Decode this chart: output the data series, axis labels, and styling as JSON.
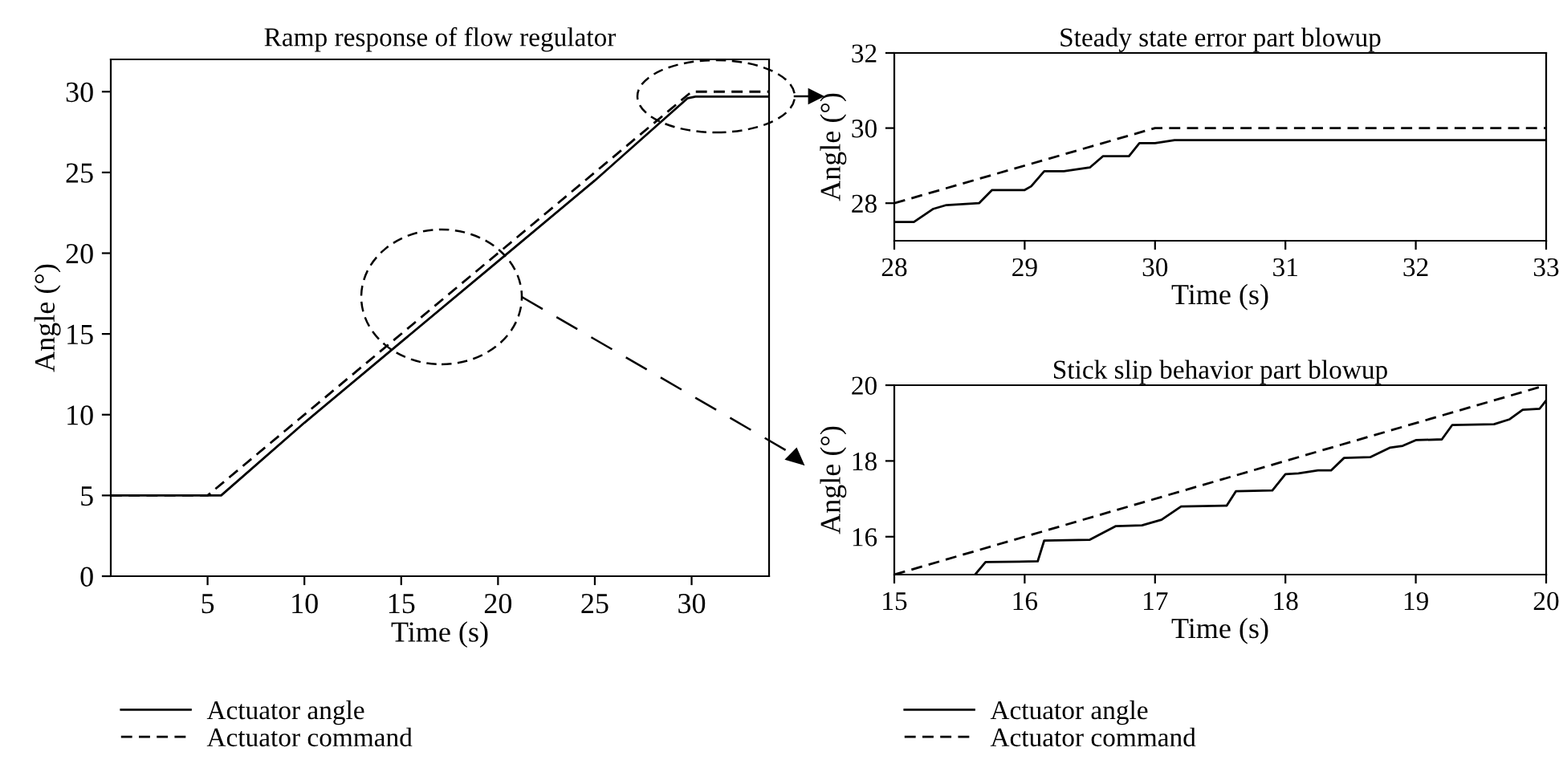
{
  "chart_data": [
    {
      "type": "line",
      "title": "Ramp response of flow regulator",
      "xlabel": "Time (s)",
      "ylabel": "Angle (°)",
      "xlim": [
        0,
        34
      ],
      "ylim": [
        0,
        32
      ],
      "xticks": [
        5,
        10,
        15,
        20,
        25,
        30
      ],
      "yticks": [
        0,
        5,
        10,
        15,
        20,
        25,
        30
      ],
      "grid": false,
      "legend": "bottom",
      "marker": "none",
      "series": [
        {
          "name": "Actuator angle",
          "color": "#000000",
          "line_style": "solid",
          "x": [
            0,
            5.7,
            10,
            15,
            20,
            25,
            29.8,
            30.2,
            34
          ],
          "values": [
            5,
            5,
            9.5,
            14.5,
            19.5,
            24.5,
            29.6,
            29.7,
            29.7
          ]
        },
        {
          "name": "Actuator command",
          "color": "#000000",
          "line_style": "dashed",
          "x": [
            0,
            5,
            30,
            34
          ],
          "values": [
            5,
            5,
            30,
            30
          ]
        }
      ]
    },
    {
      "type": "line",
      "title": "Steady state error part blowup",
      "xlabel": "Time (s)",
      "ylabel": "Angle (°)",
      "xlim": [
        28,
        33
      ],
      "ylim": [
        27,
        32
      ],
      "xticks": [
        28,
        29,
        30,
        31,
        32,
        33
      ],
      "yticks": [
        28,
        30,
        32
      ],
      "grid": false,
      "marker": "none",
      "series": [
        {
          "color": "#000000",
          "line_style": "solid",
          "x": [
            28,
            28.15,
            28.3,
            28.4,
            28.65,
            28.75,
            29.0,
            29.05,
            29.15,
            29.3,
            29.5,
            29.6,
            29.8,
            29.88,
            30.0,
            30.15,
            33
          ],
          "values": [
            27.5,
            27.5,
            27.85,
            27.95,
            28.0,
            28.35,
            28.35,
            28.45,
            28.85,
            28.85,
            28.95,
            29.25,
            29.25,
            29.6,
            29.6,
            29.68,
            29.68
          ]
        },
        {
          "color": "#000000",
          "line_style": "dashed",
          "x": [
            28,
            30,
            33
          ],
          "values": [
            28,
            30,
            30
          ]
        }
      ]
    },
    {
      "type": "line",
      "title": "Stick slip behavior part blowup",
      "xlabel": "Time (s)",
      "ylabel": "Angle (°)",
      "xlim": [
        15,
        20
      ],
      "ylim": [
        15,
        20
      ],
      "xticks": [
        15,
        16,
        17,
        18,
        19,
        20
      ],
      "yticks": [
        16,
        18,
        20
      ],
      "grid": false,
      "legend": "bottom",
      "marker": "none",
      "series": [
        {
          "name": "Actuator angle",
          "color": "#000000",
          "line_style": "solid",
          "x": [
            15.62,
            15.7,
            16.1,
            16.15,
            16.5,
            16.7,
            16.9,
            17.05,
            17.2,
            17.55,
            17.62,
            17.9,
            18.0,
            18.1,
            18.25,
            18.35,
            18.45,
            18.65,
            18.8,
            18.9,
            19.0,
            19.2,
            19.28,
            19.6,
            19.72,
            19.82,
            19.95,
            20
          ],
          "values": [
            15,
            15.33,
            15.35,
            15.9,
            15.92,
            16.28,
            16.3,
            16.45,
            16.8,
            16.82,
            17.2,
            17.22,
            17.65,
            17.67,
            17.75,
            17.75,
            18.08,
            18.1,
            18.35,
            18.4,
            18.55,
            18.57,
            18.95,
            18.97,
            19.1,
            19.35,
            19.38,
            19.6
          ]
        },
        {
          "name": "Actuator command",
          "color": "#000000",
          "line_style": "dashed",
          "x": [
            15,
            20
          ],
          "values": [
            15,
            20
          ]
        }
      ]
    }
  ]
}
